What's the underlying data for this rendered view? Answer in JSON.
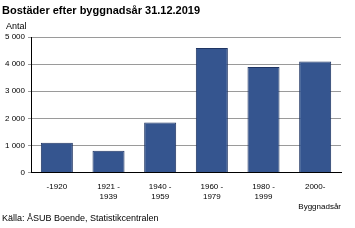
{
  "chart_data": {
    "type": "bar",
    "title": "Bostäder efter byggnadsår 31.12.2019",
    "ylabel": "Antal",
    "xlabel": "Byggnadsår",
    "source": "Källa: ÅSUB Boende, Statistikcentralen",
    "categories": [
      "-1920",
      "1921 - 1939",
      "1940 - 1959",
      "1960 - 1979",
      "1980 - 1999",
      "2000-"
    ],
    "values": [
      1100,
      800,
      1850,
      4600,
      3900,
      4100
    ],
    "color": "#35558f",
    "ylim": [
      0,
      5000
    ],
    "yticks": [
      0,
      {
        "value": 1000,
        "label": "1 000"
      },
      {
        "value": 2000,
        "label": "2 000"
      },
      {
        "value": 3000,
        "label": "3 000"
      },
      {
        "value": 4000,
        "label": "4 000"
      },
      {
        "value": 5000,
        "label": "5 000"
      }
    ],
    "grid": true
  }
}
